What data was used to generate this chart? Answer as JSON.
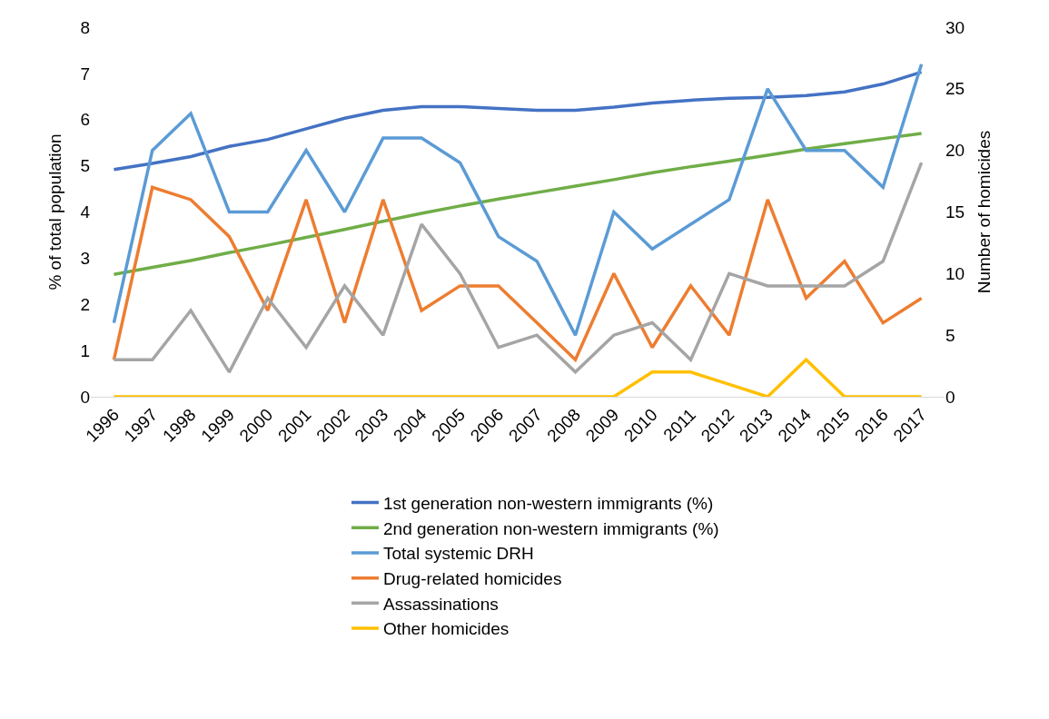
{
  "chart_data": {
    "type": "line",
    "ylabel": "% of total population",
    "y2label": "Number of homicides",
    "categories": [
      "1996",
      "1997",
      "1998",
      "1999",
      "2000",
      "2001",
      "2002",
      "2003",
      "2004",
      "2005",
      "2006",
      "2007",
      "2008",
      "2009",
      "2010",
      "2011",
      "2012",
      "2013",
      "2014",
      "2015",
      "2016",
      "2017"
    ],
    "ylim": [
      0,
      8
    ],
    "yticks": [
      0,
      1,
      2,
      3,
      4,
      5,
      6,
      7,
      8
    ],
    "y2lim": [
      0,
      30
    ],
    "y2ticks": [
      0,
      5,
      10,
      15,
      20,
      25,
      30
    ],
    "grid": false,
    "legend": "bottom",
    "marker": "none",
    "line_style": "solid",
    "series": [
      {
        "name": "1st generation non-western immigrants (%)",
        "color": "#4472c4",
        "axis": "y",
        "values": [
          4.92,
          5.05,
          5.2,
          5.42,
          5.57,
          5.8,
          6.03,
          6.2,
          6.28,
          6.28,
          6.24,
          6.2,
          6.2,
          6.27,
          6.36,
          6.42,
          6.46,
          6.48,
          6.52,
          6.6,
          6.77,
          7.03
        ]
      },
      {
        "name": "2nd generation non-western immigrants (%)",
        "color": "#70ad47",
        "axis": "y",
        "values": [
          2.65,
          2.8,
          2.95,
          3.12,
          3.28,
          3.45,
          3.62,
          3.8,
          3.97,
          4.13,
          4.28,
          4.42,
          4.56,
          4.7,
          4.85,
          4.98,
          5.1,
          5.23,
          5.36,
          5.48,
          5.59,
          5.7
        ]
      },
      {
        "name": "Total systemic DRH",
        "color": "#5b9bd5",
        "axis": "y2",
        "values": [
          6,
          20,
          23,
          15,
          15,
          20,
          15,
          21,
          21,
          19,
          13,
          11,
          5,
          15,
          12,
          14,
          16,
          25,
          20,
          20,
          17,
          27
        ]
      },
      {
        "name": "Drug-related homicides",
        "color": "#ed7d31",
        "axis": "y2",
        "values": [
          3,
          17,
          16,
          13,
          7,
          16,
          6,
          16,
          7,
          9,
          9,
          6,
          3,
          10,
          4,
          9,
          5,
          16,
          8,
          11,
          6,
          8
        ]
      },
      {
        "name": "Assassinations",
        "color": "#a5a5a5",
        "axis": "y2",
        "values": [
          3,
          3,
          7,
          2,
          8,
          4,
          9,
          5,
          14,
          10,
          4,
          5,
          2,
          5,
          6,
          3,
          10,
          9,
          9,
          9,
          11,
          19
        ]
      },
      {
        "name": "Other homicides",
        "color": "#ffc000",
        "axis": "y2",
        "values": [
          0,
          0,
          0,
          0,
          0,
          0,
          0,
          0,
          0,
          0,
          0,
          0,
          0,
          0,
          2,
          2,
          1,
          0,
          3,
          0,
          0,
          0
        ]
      }
    ]
  }
}
